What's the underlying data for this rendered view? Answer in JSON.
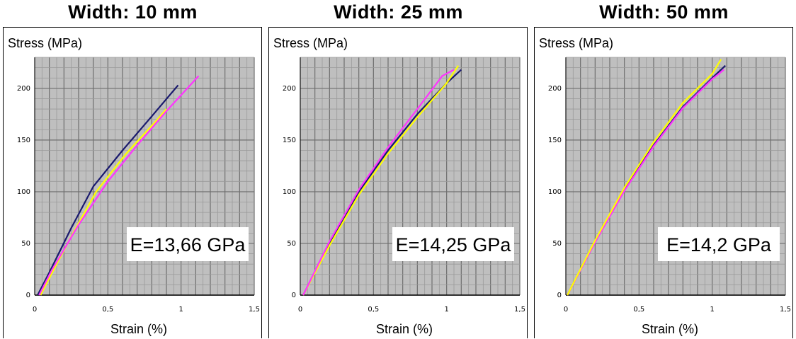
{
  "chart_data": [
    {
      "type": "line",
      "title": "Width: 10 mm",
      "ylabel": "Stress (MPa)",
      "xlabel": "Strain (%)",
      "annotation": "E=13,66 GPa",
      "xlim": [
        0,
        1.5
      ],
      "ylim": [
        0,
        230
      ],
      "xticks": [
        "0",
        "0,5",
        "1",
        "1,5"
      ],
      "yticks": [
        "0",
        "50",
        "100",
        "150",
        "200"
      ],
      "grid": true,
      "series": [
        {
          "color": "#1a1a6e",
          "x": [
            0.02,
            0.1,
            0.25,
            0.4,
            0.6,
            0.8,
            0.98
          ],
          "y": [
            0,
            22,
            65,
            105,
            140,
            173,
            203
          ]
        },
        {
          "color": "#ffff00",
          "x": [
            0.04,
            0.12,
            0.27,
            0.42,
            0.62,
            0.82,
            0.9
          ],
          "y": [
            0,
            22,
            62,
            100,
            136,
            167,
            180
          ]
        },
        {
          "color": "#ff33ff",
          "x": [
            0.03,
            0.12,
            0.3,
            0.5,
            0.7,
            0.9,
            1.12
          ],
          "y": [
            0,
            25,
            68,
            110,
            145,
            178,
            212
          ]
        }
      ]
    },
    {
      "type": "line",
      "title": "Width: 25 mm",
      "ylabel": "Stress (MPa)",
      "xlabel": "Strain (%)",
      "annotation": "E=14,25 GPa",
      "xlim": [
        0,
        1.5
      ],
      "ylim": [
        0,
        230
      ],
      "xticks": [
        "0",
        "0,5",
        "1",
        "1,5"
      ],
      "yticks": [
        "0",
        "50",
        "100",
        "150",
        "200"
      ],
      "grid": true,
      "series": [
        {
          "color": "#1a1a6e",
          "x": [
            0.02,
            0.2,
            0.4,
            0.6,
            0.8,
            1.0,
            1.1
          ],
          "y": [
            0,
            50,
            100,
            140,
            175,
            205,
            218
          ]
        },
        {
          "color": "#ffff00",
          "x": [
            0.02,
            0.2,
            0.4,
            0.6,
            0.8,
            1.0,
            1.08
          ],
          "y": [
            0,
            48,
            97,
            137,
            172,
            205,
            222
          ]
        },
        {
          "color": "#ff33ff",
          "x": [
            0.02,
            0.2,
            0.4,
            0.6,
            0.8,
            0.97,
            1.05
          ],
          "y": [
            0,
            52,
            102,
            143,
            180,
            212,
            218
          ]
        }
      ]
    },
    {
      "type": "line",
      "title": "Width: 50 mm",
      "ylabel": "Stress (MPa)",
      "xlabel": "Strain (%)",
      "annotation": "E=14,2 GPa",
      "xlim": [
        0,
        1.5
      ],
      "ylim": [
        0,
        230
      ],
      "xticks": [
        "0",
        "0,5",
        "1",
        "1,5"
      ],
      "yticks": [
        "0",
        "50",
        "100",
        "150",
        "200"
      ],
      "grid": true,
      "series": [
        {
          "color": "#1a1a6e",
          "x": [
            0.01,
            0.2,
            0.4,
            0.6,
            0.8,
            1.0,
            1.09
          ],
          "y": [
            0,
            52,
            102,
            145,
            182,
            210,
            222
          ]
        },
        {
          "color": "#ff33ff",
          "x": [
            0.01,
            0.2,
            0.4,
            0.6,
            0.8,
            1.0,
            1.08
          ],
          "y": [
            0,
            51,
            101,
            144,
            181,
            209,
            218
          ]
        },
        {
          "color": "#ffff00",
          "x": [
            0.01,
            0.2,
            0.4,
            0.6,
            0.8,
            1.0,
            1.06
          ],
          "y": [
            0,
            53,
            104,
            148,
            186,
            214,
            228
          ]
        }
      ]
    }
  ]
}
